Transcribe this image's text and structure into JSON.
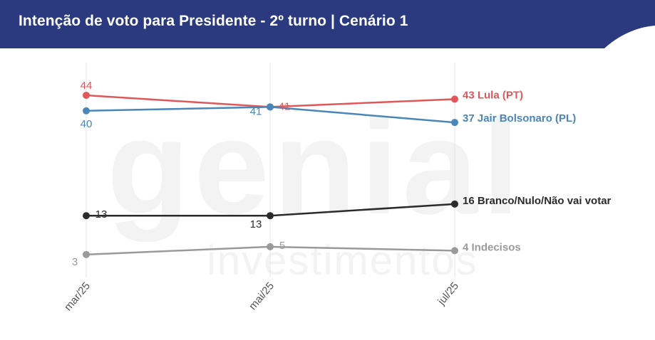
{
  "header": {
    "title": "Intenção de voto para Presidente - 2º turno | Cenário 1",
    "background": "#2b3a7e"
  },
  "watermark": {
    "brand_word": "genial",
    "sub_word": "investimentos"
  },
  "chart_data": {
    "type": "line",
    "title": "Intenção de voto para Presidente - 2º turno | Cenário 1",
    "categories": [
      "mar/25",
      "mai/25",
      "jul/25"
    ],
    "ylim": [
      0,
      50
    ],
    "grid": "vertical",
    "series": [
      {
        "name": "Lula (PT)",
        "end_label": "43 Lula (PT)",
        "values": [
          44,
          41,
          43
        ],
        "point_labels": [
          "44",
          "41",
          ""
        ],
        "color": "#e05759"
      },
      {
        "name": "Jair Bolsonaro (PL)",
        "end_label": "37 Jair Bolsonaro (PL)",
        "values": [
          40,
          41,
          37
        ],
        "point_labels": [
          "40",
          "41",
          ""
        ],
        "color": "#4a86b8"
      },
      {
        "name": "Branco/Nulo/Não vai votar",
        "end_label": "16 Branco/Nulo/Não vai votar",
        "values": [
          13,
          13,
          16
        ],
        "point_labels": [
          "13",
          "13",
          ""
        ],
        "color": "#2b2b2b"
      },
      {
        "name": "Indecisos",
        "end_label": "4 Indecisos",
        "values": [
          3,
          5,
          4
        ],
        "point_labels": [
          "3",
          "5",
          ""
        ],
        "color": "#9a9a9a"
      }
    ]
  }
}
